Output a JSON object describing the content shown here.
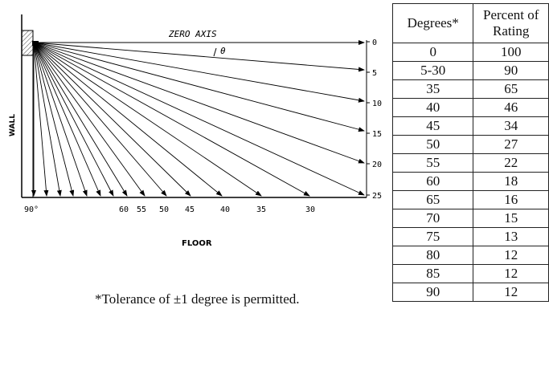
{
  "diagram": {
    "zero_axis_label": "ZERO AXIS",
    "theta_label": "θ",
    "wall_label": "WALL",
    "floor_label": "FLOOR",
    "right_labels": [
      "0",
      "5",
      "10",
      "15",
      "20",
      "25"
    ],
    "bottom_labels": [
      "90°",
      "60",
      "55",
      "50",
      "45",
      "40",
      "35",
      "30"
    ]
  },
  "footnote": "*Tolerance of ±1 degree is permitted.",
  "table": {
    "headers": [
      "Degrees*",
      "Percent of Rating"
    ],
    "rows": [
      [
        "0",
        "100"
      ],
      [
        "5-30",
        "90"
      ],
      [
        "35",
        "65"
      ],
      [
        "40",
        "46"
      ],
      [
        "45",
        "34"
      ],
      [
        "50",
        "27"
      ],
      [
        "55",
        "22"
      ],
      [
        "60",
        "18"
      ],
      [
        "65",
        "16"
      ],
      [
        "70",
        "15"
      ],
      [
        "75",
        "13"
      ],
      [
        "80",
        "12"
      ],
      [
        "85",
        "12"
      ],
      [
        "90",
        "12"
      ]
    ]
  }
}
